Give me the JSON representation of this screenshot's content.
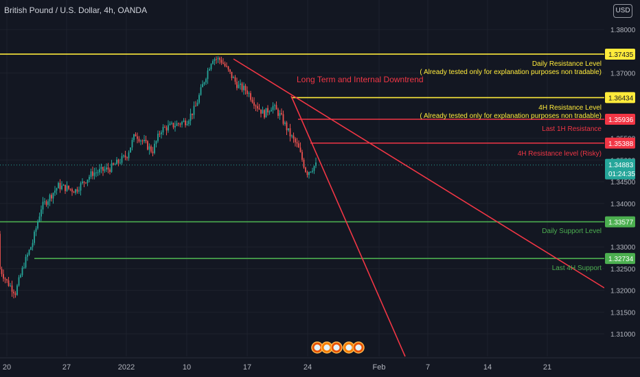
{
  "header": {
    "title": "British Pound / U.S. Dollar, 4h, OANDA",
    "currency": "USD"
  },
  "colors": {
    "background": "#131722",
    "grid": "#1e222d",
    "up": "#26a69a",
    "down": "#ef5350",
    "yellow": "#ffeb3b",
    "red": "#f23645",
    "green": "#4caf50",
    "text": "#b2b5be"
  },
  "chart_data": {
    "type": "candlestick",
    "title": "British Pound / U.S. Dollar, 4h, OANDA",
    "ylim": [
      1.3048,
      1.3868
    ],
    "y_ticks": [
      "1.38000",
      "1.37000",
      "1.35500",
      "1.35000",
      "1.34500",
      "1.34000",
      "1.33000",
      "1.32500",
      "1.32000",
      "1.31500",
      "1.31000"
    ],
    "x_ticks": [
      "20",
      "27",
      "2022",
      "10",
      "17",
      "24",
      "Feb",
      "7",
      "14",
      "21"
    ],
    "price_badges": [
      {
        "value": "1.37435",
        "style": "yellow"
      },
      {
        "value": "1.36434",
        "style": "yellow"
      },
      {
        "value": "1.35936",
        "style": "red"
      },
      {
        "value": "1.35388",
        "style": "red"
      },
      {
        "value": "1.33577",
        "style": "green"
      },
      {
        "value": "1.32734",
        "style": "green"
      }
    ],
    "last_price": {
      "value": "1.34883",
      "countdown": "01:24:35"
    },
    "levels": [
      {
        "name": "Daily Resistance Level",
        "price": 1.37435,
        "color": "yellow",
        "label": "Daily Resistance Level",
        "sublabel": "( Already tested only for explanation purposes non tradable)",
        "start_x": 0
      },
      {
        "name": "4H Resistance Level",
        "price": 1.36434,
        "color": "yellow",
        "label": "4H Resistance Level",
        "sublabel": "( Already tested only for explanation purposes non tradable)",
        "start_x": 424
      },
      {
        "name": "Last 1H Resistance",
        "price": 1.35936,
        "color": "red",
        "label": "Last 1H Resistance",
        "start_x": 434
      },
      {
        "name": "4H Resistance level (Risky)",
        "price": 1.35388,
        "color": "red",
        "label": "4H Resistance level (Risky)",
        "start_x": 452
      },
      {
        "name": "Daily Support Level",
        "price": 1.33577,
        "color": "green",
        "label": "Daily Support Level",
        "start_x": 0
      },
      {
        "name": "Last 4H Support",
        "price": 1.32734,
        "color": "green",
        "label": "Last 4H Support",
        "start_x": 50
      }
    ],
    "trendline_label": "Long Term and Internal Downtrend",
    "price_path": [
      [
        "Dec 17",
        1.333
      ],
      [
        "Dec 20",
        1.322
      ],
      [
        "Dec 21",
        1.3195
      ],
      [
        "Dec 22",
        1.326
      ],
      [
        "Dec 23",
        1.331
      ],
      [
        "Dec 24",
        1.339
      ],
      [
        "Dec 26",
        1.344
      ],
      [
        "Dec 28",
        1.343
      ],
      [
        "Dec 30",
        1.347
      ],
      [
        "Jan 1",
        1.348
      ],
      [
        "Jan 3",
        1.351
      ],
      [
        "Jan 4",
        1.356
      ],
      [
        "Jan 5",
        1.354
      ],
      [
        "Jan 6",
        1.352
      ],
      [
        "Jan 7",
        1.357
      ],
      [
        "Jan 10",
        1.359
      ],
      [
        "Jan 11",
        1.362
      ],
      [
        "Jan 12",
        1.368
      ],
      [
        "Jan 13",
        1.3735
      ],
      [
        "Jan 14",
        1.373
      ],
      [
        "Jan 15",
        1.37
      ],
      [
        "Jan 16",
        1.367
      ],
      [
        "Jan 17",
        1.366
      ],
      [
        "Jan 18",
        1.363
      ],
      [
        "Jan 19",
        1.3605
      ],
      [
        "Jan 20",
        1.3625
      ],
      [
        "Jan 21",
        1.36
      ],
      [
        "Jan 22",
        1.356
      ],
      [
        "Jan 23",
        1.353
      ],
      [
        "Jan 24",
        1.347
      ],
      [
        "Jan 25",
        1.3488
      ]
    ]
  }
}
